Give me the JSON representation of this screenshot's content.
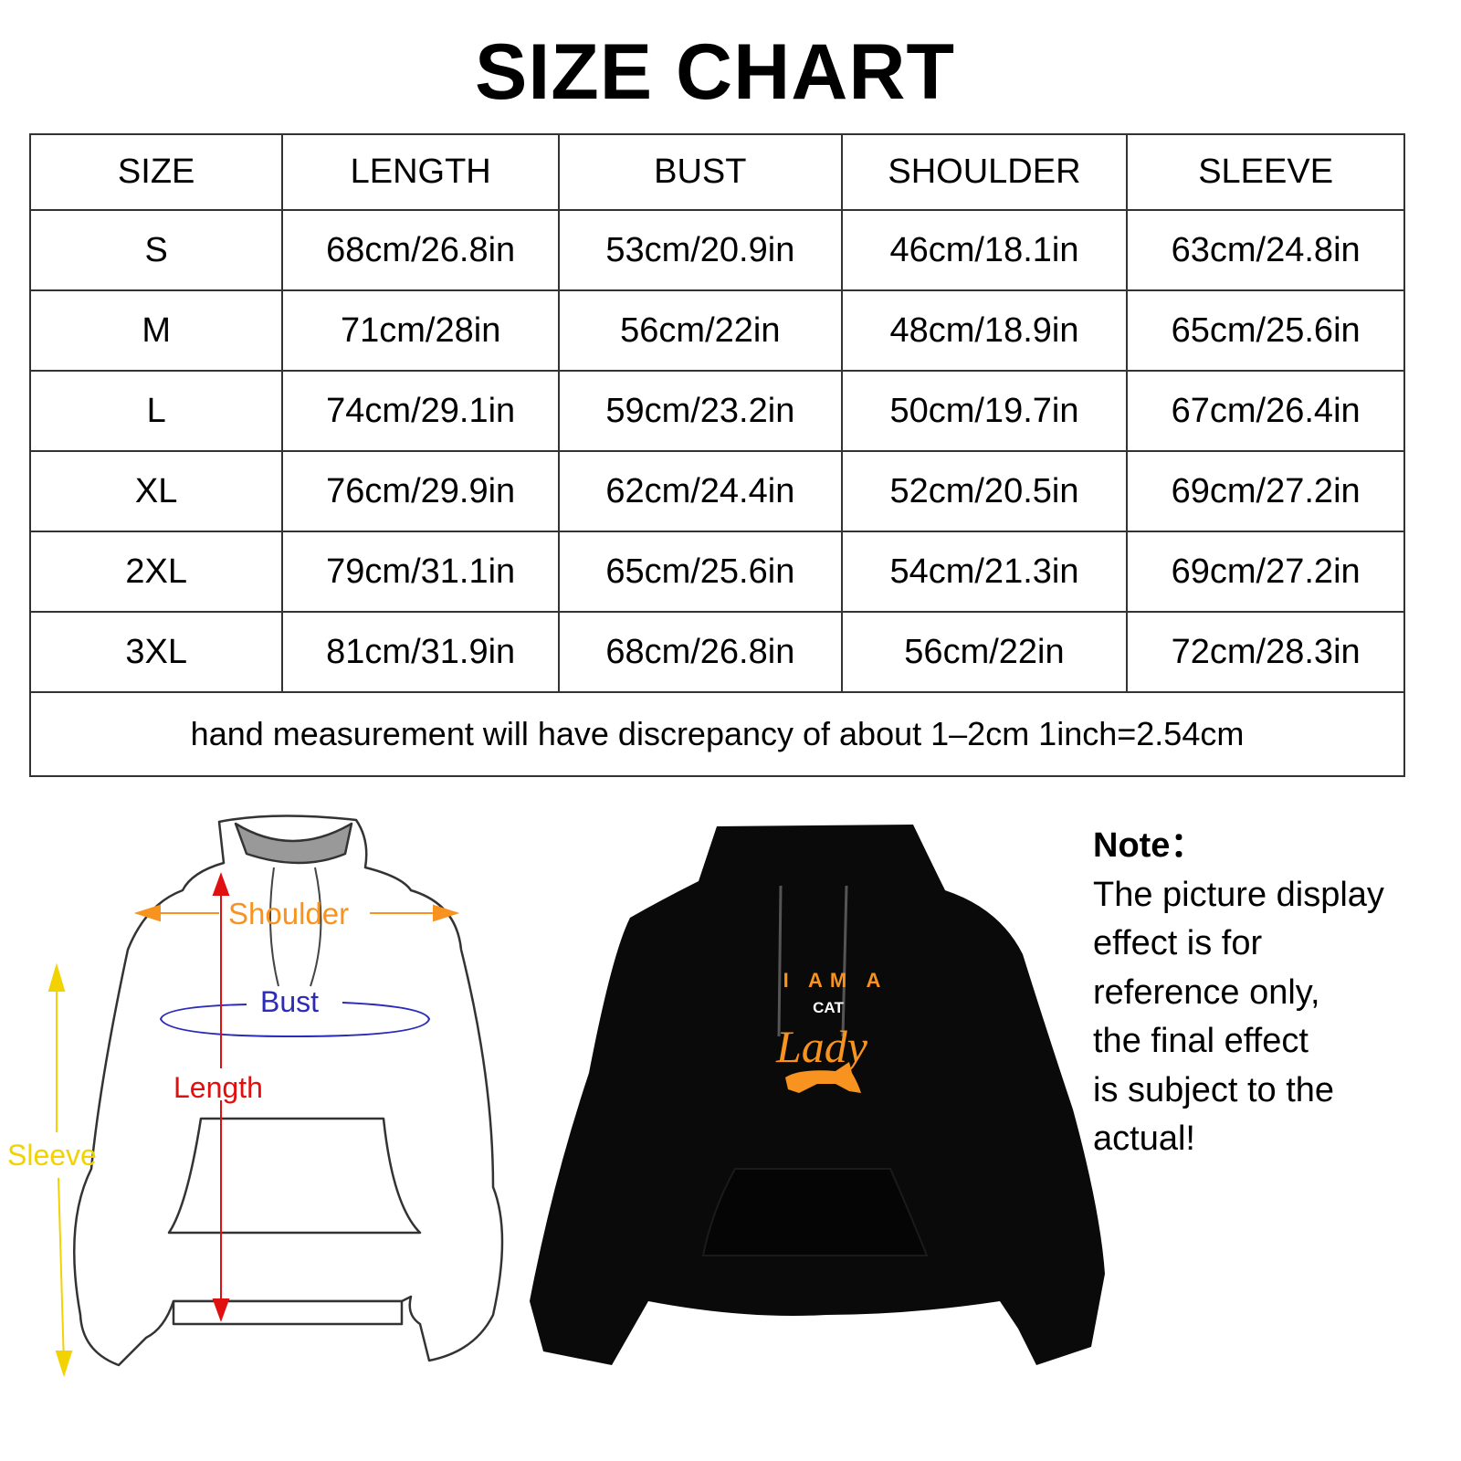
{
  "title": "SIZE CHART",
  "table": {
    "headers": [
      "SIZE",
      "LENGTH",
      "BUST",
      "SHOULDER",
      "SLEEVE"
    ],
    "rows": [
      [
        "S",
        "68cm/26.8in",
        "53cm/20.9in",
        "46cm/18.1in",
        "63cm/24.8in"
      ],
      [
        "M",
        "71cm/28in",
        "56cm/22in",
        "48cm/18.9in",
        "65cm/25.6in"
      ],
      [
        "L",
        "74cm/29.1in",
        "59cm/23.2in",
        "50cm/19.7in",
        "67cm/26.4in"
      ],
      [
        "XL",
        "76cm/29.9in",
        "62cm/24.4in",
        "52cm/20.5in",
        "69cm/27.2in"
      ],
      [
        "2XL",
        "79cm/31.1in",
        "65cm/25.6in",
        "54cm/21.3in",
        "69cm/27.2in"
      ],
      [
        "3XL",
        "81cm/31.9in",
        "68cm/26.8in",
        "56cm/22in",
        "72cm/28.3in"
      ]
    ],
    "footnote": "hand measurement will have discrepancy of about 1–2cm 1inch=2.54cm"
  },
  "diagram": {
    "shoulder": "Shoulder",
    "bust": "Bust",
    "length": "Length",
    "sleeve": "Sleeve",
    "colors": {
      "shoulder": "#f7931e",
      "bust": "#2b2bb8",
      "length": "#e01010",
      "sleeve": "#f2d200"
    }
  },
  "product": {
    "print_lines": [
      "I AM A",
      "CAT",
      "Lady"
    ],
    "print_color": "#f7931e",
    "garment_color": "#0a0a0a"
  },
  "note": {
    "heading": "Note：",
    "lines": [
      "The picture display",
      "effect is for",
      "reference only,",
      "the final effect",
      "is subject to the",
      "actual!"
    ]
  }
}
